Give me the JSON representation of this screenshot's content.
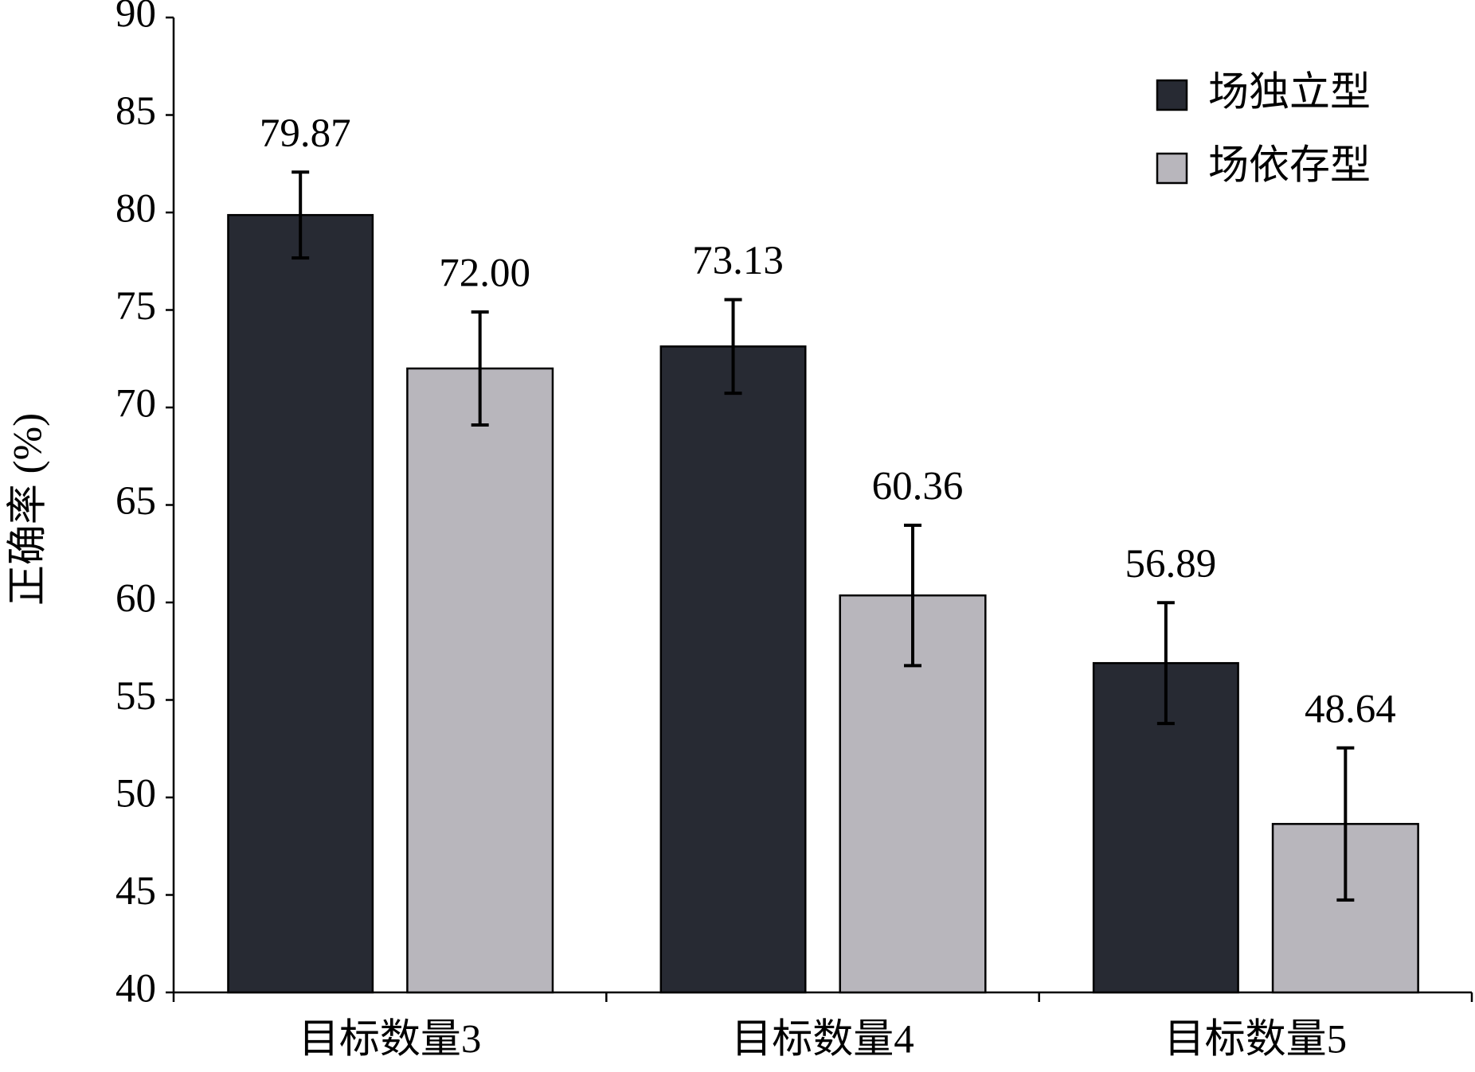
{
  "chart_data": {
    "type": "bar",
    "y_label": "正确率 (%)",
    "categories": [
      "目标数量3",
      "目标数量4",
      "目标数量5"
    ],
    "series": [
      {
        "name": "场独立型",
        "color": "#272a33",
        "values": [
          79.87,
          73.13,
          56.89
        ],
        "value_labels": [
          "79.87",
          "73.13",
          "56.89"
        ],
        "errors": [
          2.2,
          2.4,
          3.1
        ]
      },
      {
        "name": "场依存型",
        "color": "#b8b6bc",
        "values": [
          72.0,
          60.36,
          48.64
        ],
        "value_labels": [
          "72.00",
          "60.36",
          "48.64"
        ],
        "errors": [
          2.9,
          3.6,
          3.9
        ]
      }
    ],
    "ylim": [
      40,
      90
    ],
    "yticks": [
      40,
      45,
      50,
      55,
      60,
      65,
      70,
      75,
      80,
      85,
      90
    ],
    "grid": false,
    "legend": "top-right"
  }
}
